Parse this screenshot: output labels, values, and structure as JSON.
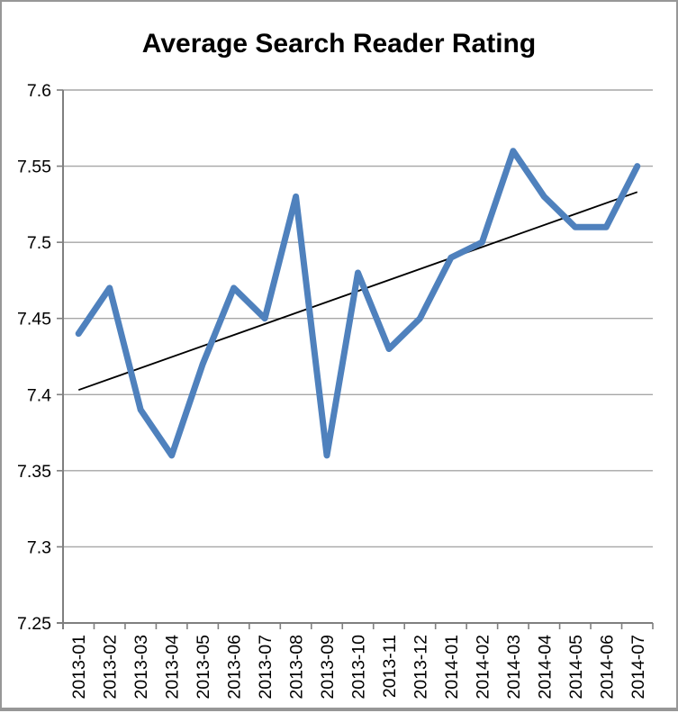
{
  "chart_data": {
    "type": "line",
    "title": "Average Search Reader Rating",
    "xlabel": "",
    "ylabel": "",
    "categories": [
      "2013-01",
      "2013-02",
      "2013-03",
      "2013-04",
      "2013-05",
      "2013-06",
      "2013-07",
      "2013-08",
      "2013-09",
      "2013-10",
      "2013-11",
      "2013-12",
      "2014-01",
      "2014-02",
      "2014-03",
      "2014-04",
      "2014-05",
      "2014-06",
      "2014-07"
    ],
    "series": [
      {
        "name": "Average Search Reader Rating",
        "values": [
          7.44,
          7.47,
          7.39,
          7.36,
          7.42,
          7.47,
          7.45,
          7.53,
          7.36,
          7.48,
          7.43,
          7.45,
          7.49,
          7.5,
          7.56,
          7.53,
          7.51,
          7.51,
          7.55
        ],
        "color": "#4F81BD"
      }
    ],
    "trendline": {
      "type": "linear",
      "start_value": 7.403,
      "end_value": 7.533,
      "color": "#000000"
    },
    "ylim": [
      7.25,
      7.6
    ],
    "ytick_step": 0.05,
    "ytick_labels_top_to_bottom": [
      "7.6",
      "7.55",
      "7.5",
      "7.45",
      "7.4",
      "7.35",
      "7.3",
      "7.25"
    ],
    "grid": "horizontal-only",
    "legend": "none",
    "x_label_rotation_degrees": -90,
    "colors": {
      "gridline": "#A6A6A6",
      "axis": "#7F7F7F",
      "tick_label": "#000000",
      "title": "#000000",
      "page_border": "#979797"
    }
  }
}
